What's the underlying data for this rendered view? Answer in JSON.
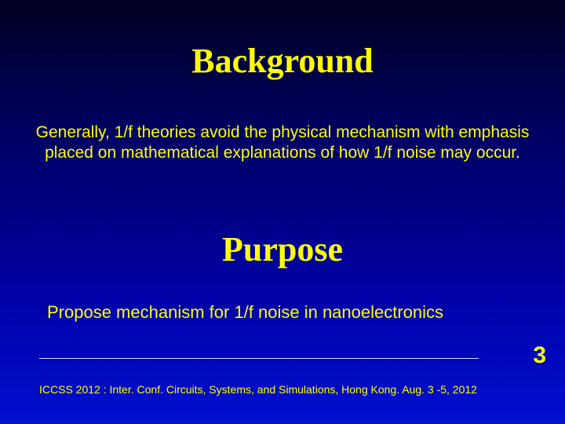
{
  "slide": {
    "heading1": "Background",
    "body1": "Generally, 1/f theories avoid the physical mechanism with emphasis placed on mathematical explanations of how 1/f noise may occur.",
    "heading2": "Purpose",
    "body2": "Propose mechanism for 1/f noise in nanoelectronics",
    "pageNumber": "3",
    "footer": "ICCSS 2012 : Inter. Conf. Circuits, Systems, and Simulations, Hong Kong. Aug. 3 -5, 2012"
  },
  "style": {
    "background_gradient": [
      "#000020",
      "#00006a",
      "#0000a8",
      "#0010d0"
    ],
    "heading_color": "#ffff00",
    "heading_font": "Times New Roman",
    "heading_fontsize": 44,
    "body_color": "#ffff00",
    "body_font": "Arial",
    "body_fontsize": 21,
    "divider_color": "#d8d8ff",
    "page_number_fontsize": 30,
    "footer_fontsize": 14,
    "slide_width": 720,
    "slide_height": 540
  }
}
